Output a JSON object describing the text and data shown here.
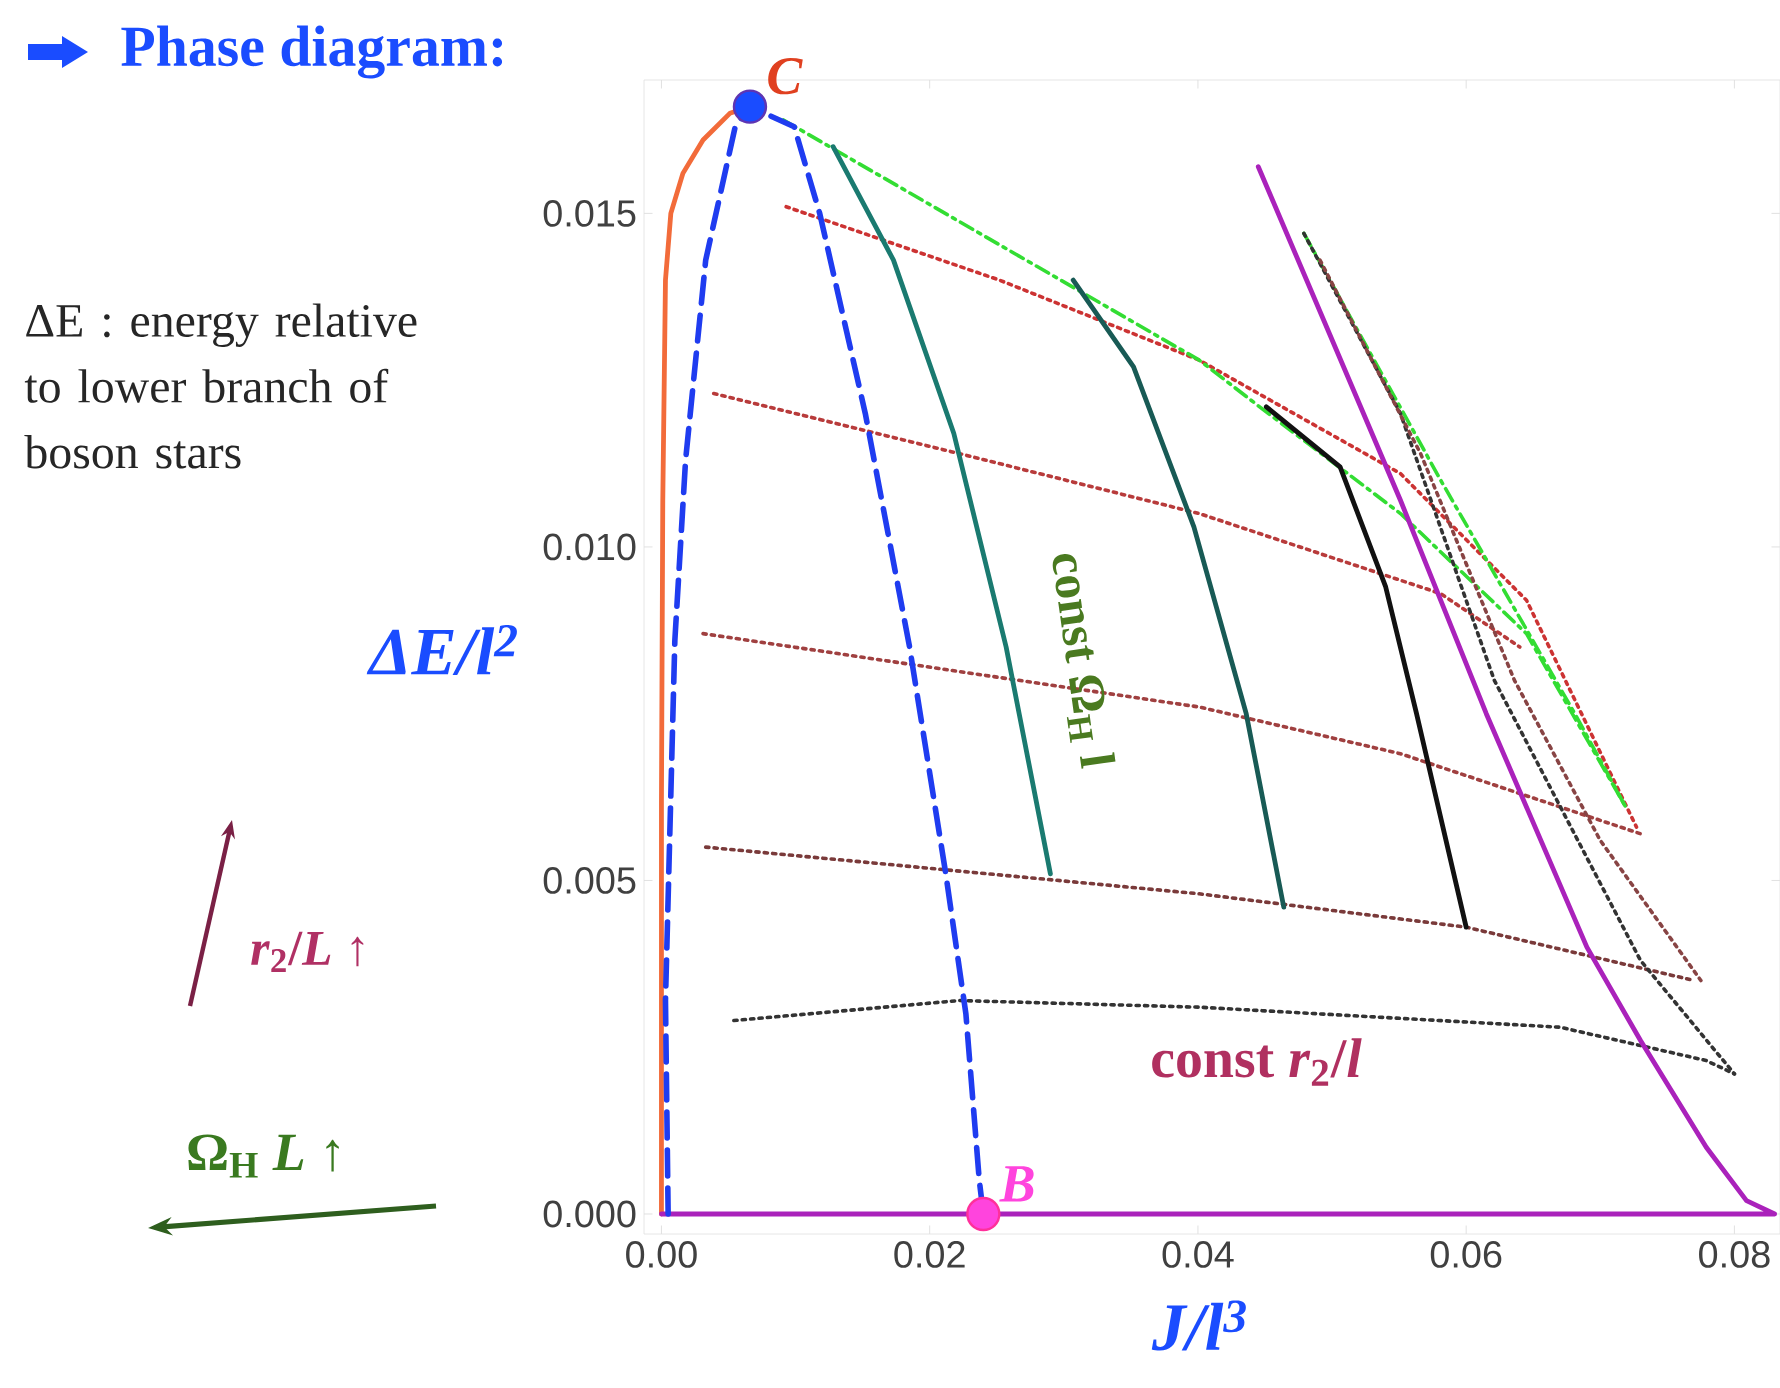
{
  "chart_data": {
    "type": "line",
    "title": "Phase diagram:",
    "xlabel": "J/l$^{3}$",
    "ylabel": "ΔE/l$^{2}$",
    "xlim": [
      -0.0013,
      0.0834
    ],
    "ylim": [
      -0.0003,
      0.017
    ],
    "xticks": [
      {
        "value": 0,
        "label": "0.00"
      },
      {
        "value": 0.02,
        "label": "0.02"
      },
      {
        "value": 0.04,
        "label": "0.04"
      },
      {
        "value": 0.06,
        "label": "0.06"
      },
      {
        "value": 0.08,
        "label": "0.08"
      }
    ],
    "yticks": [
      {
        "value": 0,
        "label": "0.000"
      },
      {
        "value": 0.005,
        "label": "0.005"
      },
      {
        "value": 0.01,
        "label": "0.010"
      },
      {
        "value": 0.015,
        "label": "0.015"
      }
    ],
    "grid": false,
    "series": [
      {
        "type": "line",
        "color": "#cc3333",
        "line_style": "dotted",
        "x": [
          0.0093,
          0.0252,
          0.0401,
          0.0551,
          0.0645,
          0.0727
        ],
        "values": [
          0.0151,
          0.014,
          0.0128,
          0.0111,
          0.0092,
          0.0058
        ]
      },
      {
        "type": "line",
        "color": "#b83b3b",
        "line_style": "dotted",
        "x": [
          0.0039,
          0.0222,
          0.0401,
          0.0581,
          0.064
        ],
        "values": [
          0.0123,
          0.0114,
          0.0105,
          0.0093,
          0.0085
        ]
      },
      {
        "type": "line",
        "color": "#a04040",
        "line_style": "dotted",
        "x": [
          0.0031,
          0.0401,
          0.0551,
          0.073
        ],
        "values": [
          0.0087,
          0.0076,
          0.0069,
          0.0057
        ]
      },
      {
        "type": "line",
        "color": "#7a3a3a",
        "line_style": "dotted",
        "x": [
          0.0033,
          0.0401,
          0.06,
          0.077
        ],
        "values": [
          0.0055,
          0.0048,
          0.0043,
          0.0035
        ]
      },
      {
        "type": "line",
        "color": "#333333",
        "line_style": "dotted",
        "x": [
          0.0054,
          0.0222,
          0.0401,
          0.067,
          0.0779,
          0.08
        ],
        "values": [
          0.0029,
          0.0032,
          0.0031,
          0.0028,
          0.0023,
          0.0021
        ]
      },
      {
        "type": "line",
        "color": "#33dd33",
        "line_style": "dashdot",
        "x": [
          0.0091,
          0.0401,
          0.0446,
          0.0551,
          0.0645,
          0.0719
        ],
        "values": [
          0.0164,
          0.0128,
          0.0121,
          0.0105,
          0.0087,
          0.0061
        ]
      },
      {
        "type": "line",
        "color": "#33dd33",
        "line_style": "dashdot",
        "x": [
          0.0479,
          0.0581,
          0.0681,
          0.0719
        ],
        "values": [
          0.0147,
          0.011,
          0.0075,
          0.0061
        ]
      },
      {
        "type": "line",
        "color": "#333333",
        "line_style": "dotted",
        "x": [
          0.0479,
          0.0551,
          0.0621,
          0.073,
          0.08
        ],
        "values": [
          0.0147,
          0.012,
          0.008,
          0.0038,
          0.0021
        ]
      },
      {
        "type": "line",
        "color": "#884444",
        "line_style": "dotted",
        "x": [
          0.0491,
          0.0566,
          0.0636,
          0.07,
          0.0775
        ],
        "values": [
          0.0143,
          0.0114,
          0.008,
          0.0056,
          0.0035
        ]
      },
      {
        "type": "line",
        "color": "#f26b3a",
        "line_style": "solid",
        "x": [
          0,
          0,
          0.0001,
          0.0003,
          0.0007,
          0.0016,
          0.0031,
          0.0051,
          0.0066
        ],
        "values": [
          0,
          0.0062,
          0.0107,
          0.014,
          0.015,
          0.0156,
          0.0161,
          0.0165,
          0.0166
        ]
      },
      {
        "type": "line",
        "color": "#aa22bb",
        "line_style": "solid",
        "x": [
          0,
          0.083,
          0.0809,
          0.0779,
          0.073,
          0.069,
          0.0615,
          0.0551,
          0.0445
        ],
        "values": [
          0,
          0,
          0.0002,
          0.001,
          0.0026,
          0.004,
          0.0075,
          0.0107,
          0.0157
        ]
      },
      {
        "type": "line",
        "color": "#1a7a70",
        "line_style": "solid",
        "x": [
          0.0128,
          0.0173,
          0.0218,
          0.0257,
          0.029
        ],
        "values": [
          0.016,
          0.0143,
          0.0117,
          0.0085,
          0.0051
        ]
      },
      {
        "type": "line",
        "color": "#185a55",
        "line_style": "solid",
        "x": [
          0.0307,
          0.0352,
          0.0397,
          0.0436,
          0.0464
        ],
        "values": [
          0.014,
          0.0127,
          0.0103,
          0.0075,
          0.0046
        ]
      },
      {
        "type": "line",
        "color": "#111111",
        "line_style": "solid",
        "x": [
          0.0451,
          0.0506,
          0.054,
          0.0563,
          0.06
        ],
        "values": [
          0.0121,
          0.0112,
          0.0094,
          0.0075,
          0.0043
        ]
      },
      {
        "type": "line",
        "color": "#1f3cf0",
        "line_style": "dashed",
        "x": [
          0.0005,
          0.0003,
          0.001,
          0.0018,
          0.0033,
          0.0055,
          0.0066,
          0.0099,
          0.0118,
          0.0152,
          0.0185,
          0.0212,
          0.0227,
          0.0237,
          0.024
        ],
        "values": [
          0,
          0.0032,
          0.0086,
          0.0113,
          0.0143,
          0.0163,
          0.0166,
          0.0163,
          0.015,
          0.012,
          0.0085,
          0.0051,
          0.003,
          0.0005,
          0
        ]
      },
      {
        "type": "scatter",
        "color": "#1a4cff",
        "marker": "circle",
        "x": [
          0.0066
        ],
        "values": [
          0.0166
        ]
      },
      {
        "type": "scatter",
        "color": "#ff44dd",
        "marker": "circle",
        "x": [
          0.024
        ],
        "values": [
          0
        ]
      }
    ],
    "annotations": [
      {
        "text": "C",
        "x": 0.0066,
        "y": 0.0166
      },
      {
        "text": "B",
        "x": 0.024,
        "y": 0
      },
      "const Ω$_{H}$ l",
      "const *r*$_{2}$/*l*",
      "ΔE : energy relative to lower branch of boson stars",
      "*r*$_{2}$/*L* ↑",
      "Ω$_{H}$ *L* ↑"
    ]
  }
}
